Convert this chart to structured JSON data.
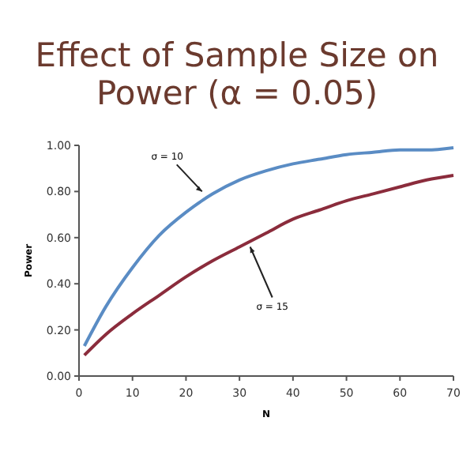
{
  "chart_data": {
    "type": "line",
    "title": "Effect of Sample Size on Power (α = 0.05)",
    "xlabel": "N",
    "ylabel": "Power",
    "xlim": [
      0,
      70
    ],
    "xticks": [
      0,
      10,
      20,
      30,
      40,
      50,
      60,
      70
    ],
    "ylim": [
      0,
      1
    ],
    "yticks": [
      {
        "value": 0,
        "label": "0.00"
      },
      {
        "value": 0.2,
        "label": "0.20"
      },
      {
        "value": 0.4,
        "label": "0.40"
      },
      {
        "value": 0.6,
        "label": "0.60"
      },
      {
        "value": 0.8,
        "label": "0.80"
      },
      {
        "value": 1,
        "label": "1.00"
      }
    ],
    "grid": false,
    "x": [
      1,
      5,
      10,
      15,
      20,
      25,
      30,
      35,
      40,
      45,
      50,
      55,
      60,
      65,
      70
    ],
    "series": [
      {
        "color": "#5a8cc4",
        "values": [
          0.13,
          0.3,
          0.47,
          0.61,
          0.71,
          0.79,
          0.85,
          0.89,
          0.92,
          0.94,
          0.96,
          0.97,
          0.98,
          0.98,
          0.99
        ]
      },
      {
        "color": "#8b2c3c",
        "values": [
          0.09,
          0.18,
          0.27,
          0.35,
          0.43,
          0.5,
          0.56,
          0.62,
          0.68,
          0.72,
          0.76,
          0.79,
          0.82,
          0.85,
          0.87
        ]
      }
    ],
    "annotations": [
      {
        "text": "σ = 10",
        "x": 23,
        "y": 0.8
      },
      {
        "text": "σ = 15",
        "x": 32,
        "y": 0.56
      }
    ]
  }
}
